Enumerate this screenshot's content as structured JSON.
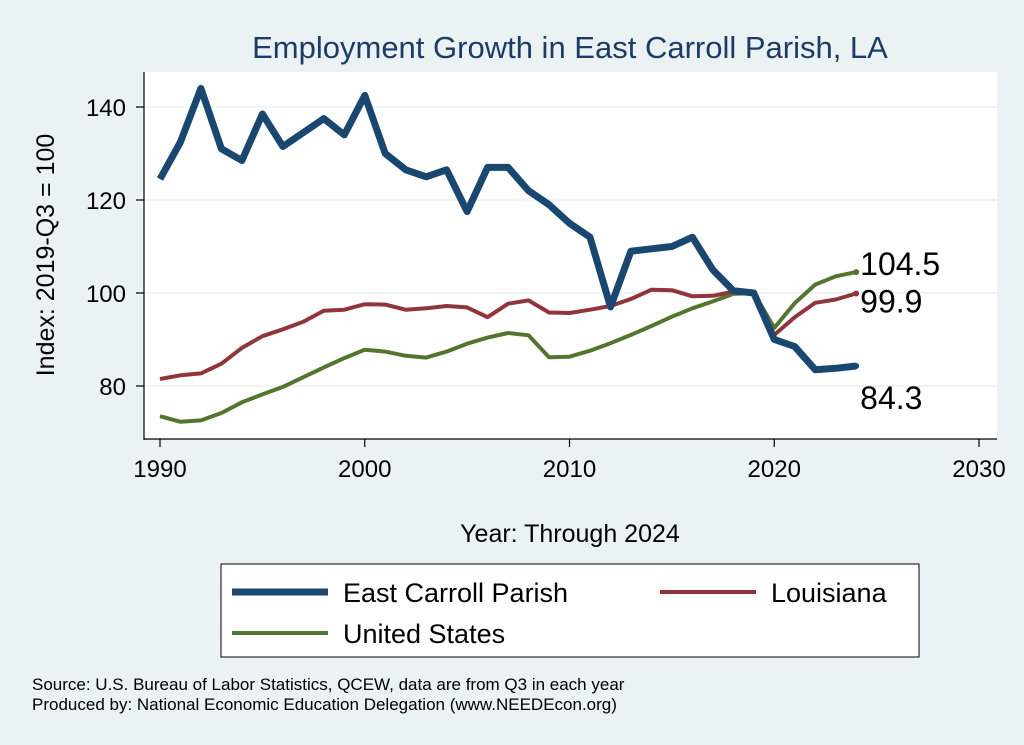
{
  "chart_data": {
    "type": "line",
    "title": "Employment Growth in East Carroll Parish, LA",
    "xlabel": "Year: Through 2024",
    "ylabel": "Index: 2019-Q3 = 100",
    "xlim": [
      1990,
      2030
    ],
    "ylim": [
      70,
      147
    ],
    "xticks": [
      1990,
      2000,
      2010,
      2020,
      2030
    ],
    "yticks": [
      80,
      100,
      120,
      140
    ],
    "x": [
      1990,
      1991,
      1992,
      1993,
      1994,
      1995,
      1996,
      1997,
      1998,
      1999,
      2000,
      2001,
      2002,
      2003,
      2004,
      2005,
      2006,
      2007,
      2008,
      2009,
      2010,
      2011,
      2012,
      2013,
      2014,
      2015,
      2016,
      2017,
      2018,
      2019,
      2020,
      2021,
      2022,
      2023,
      2024
    ],
    "series": [
      {
        "name": "East Carroll Parish",
        "color": "#1a476f",
        "end_label": "84.3",
        "values": [
          124.5,
          132.5,
          144.0,
          131.0,
          128.5,
          138.5,
          131.5,
          134.5,
          137.5,
          134.0,
          142.5,
          130.0,
          126.5,
          125.0,
          126.5,
          117.5,
          127.0,
          127.0,
          122.0,
          119.0,
          115.0,
          112.0,
          97.0,
          109.0,
          109.5,
          110.0,
          112.0,
          105.0,
          100.5,
          100.0,
          90.0,
          88.5,
          83.5,
          83.8,
          84.3
        ]
      },
      {
        "name": "Louisiana",
        "color": "#90353b",
        "end_label": "99.9",
        "values": [
          81.5,
          82.3,
          82.7,
          84.8,
          88.2,
          90.7,
          92.2,
          93.8,
          96.2,
          96.4,
          97.6,
          97.5,
          96.4,
          96.7,
          97.2,
          96.9,
          94.8,
          97.7,
          98.4,
          95.8,
          95.7,
          96.4,
          97.2,
          98.7,
          100.7,
          100.6,
          99.3,
          99.4,
          100.3,
          100.0,
          91.0,
          94.8,
          97.9,
          98.6,
          99.9
        ]
      },
      {
        "name": "United States",
        "color": "#55752f",
        "end_label": "104.5",
        "values": [
          73.5,
          72.3,
          72.6,
          74.2,
          76.5,
          78.2,
          79.8,
          81.9,
          84.0,
          86.0,
          87.8,
          87.4,
          86.5,
          86.1,
          87.4,
          89.1,
          90.4,
          91.4,
          90.9,
          86.2,
          86.3,
          87.6,
          89.2,
          91.0,
          92.9,
          94.9,
          96.7,
          98.2,
          99.8,
          100.0,
          92.5,
          97.8,
          101.8,
          103.6,
          104.5
        ]
      }
    ],
    "legend": {
      "items": [
        "East Carroll Parish",
        "Louisiana",
        "United States"
      ],
      "placement": "bottom"
    }
  },
  "notes": {
    "source": "Source: U.S. Bureau of Labor Statistics, QCEW, data are from Q3 in each year",
    "produced": "Produced by: National Economic Education Delegation (www.NEEDEcon.org)"
  }
}
